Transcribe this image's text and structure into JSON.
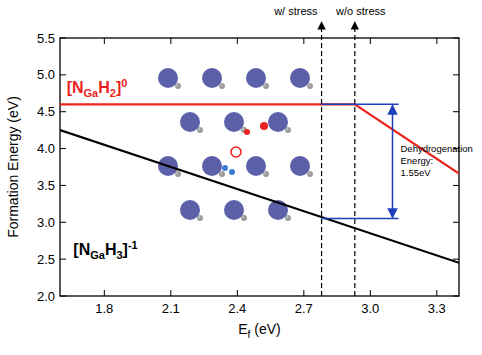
{
  "chart_data": {
    "type": "line",
    "x_label": "Ef (eV)",
    "y_label": "Formation Energy (eV)",
    "xlim": [
      1.6,
      3.4
    ],
    "ylim": [
      2.0,
      5.5
    ],
    "xticks": [
      1.8,
      2.1,
      2.4,
      2.7,
      {
        "value": 3.0,
        "label": "3.0"
      },
      3.3
    ],
    "yticks": [
      {
        "value": 2.0,
        "label": "2.0"
      },
      2.5,
      {
        "value": 3.0,
        "label": "3.0"
      },
      3.5,
      {
        "value": 4.0,
        "label": "4.0"
      },
      4.5,
      {
        "value": 5.0,
        "label": "5.0"
      },
      5.5
    ],
    "series": [
      {
        "name": "[NGaH2]0",
        "color": "#e8231f",
        "x": [
          1.6,
          2.93,
          3.4
        ],
        "values": [
          4.6,
          4.6,
          3.66
        ]
      },
      {
        "name": "[NGaH3]-1",
        "color": "#000000",
        "x": [
          1.6,
          3.4
        ],
        "values": [
          4.25,
          2.45
        ]
      }
    ],
    "annotations": [
      {
        "x": 2.78,
        "label": "w/ stress",
        "line_style": "dashed"
      },
      {
        "x": 2.93,
        "label": "w/o stress",
        "line_style": "dashed"
      },
      {
        "x": 3.1,
        "x_start": 2.78,
        "y": [
          3.05,
          4.6
        ],
        "label": "Dehydrogenation Energy: 1.55eV",
        "color": "#1f3fbf"
      }
    ]
  }
}
